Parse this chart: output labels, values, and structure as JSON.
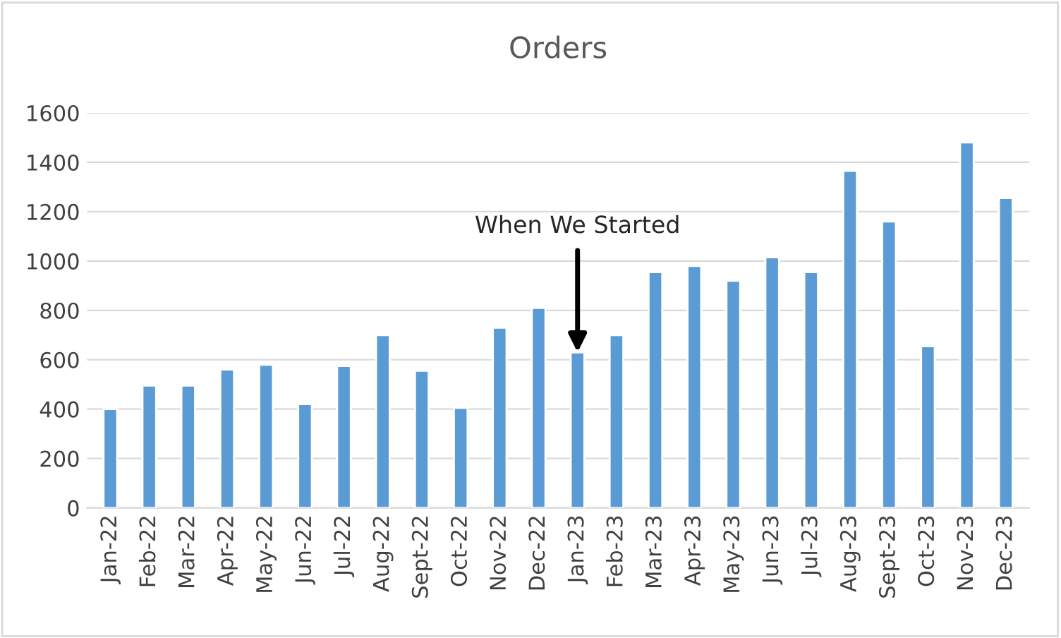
{
  "chart_data": {
    "type": "bar",
    "title": "Orders",
    "categories": [
      "Jan-22",
      "Feb-22",
      "Mar-22",
      "Apr-22",
      "May-22",
      "Jun-22",
      "Jul-22",
      "Aug-22",
      "Sept-22",
      "Oct-22",
      "Nov-22",
      "Dec-22",
      "Jan-23",
      "Feb-23",
      "Mar-23",
      "Apr-23",
      "May-23",
      "Jun-23",
      "Jul-23",
      "Aug-23",
      "Sept-23",
      "Oct-23",
      "Nov-23",
      "Dec-23"
    ],
    "values": [
      400,
      495,
      495,
      560,
      580,
      420,
      575,
      700,
      555,
      405,
      730,
      810,
      630,
      700,
      955,
      980,
      920,
      1015,
      955,
      1365,
      1160,
      655,
      1480,
      1255
    ],
    "color": "#5b9bd5",
    "ylim": [
      0,
      1600
    ],
    "yticks": [
      0,
      200,
      400,
      600,
      800,
      1000,
      1200,
      1400,
      1600
    ],
    "grid": "y",
    "annotations": [
      {
        "text": "When We Started",
        "x": "Jan-23",
        "y": 630
      }
    ]
  }
}
